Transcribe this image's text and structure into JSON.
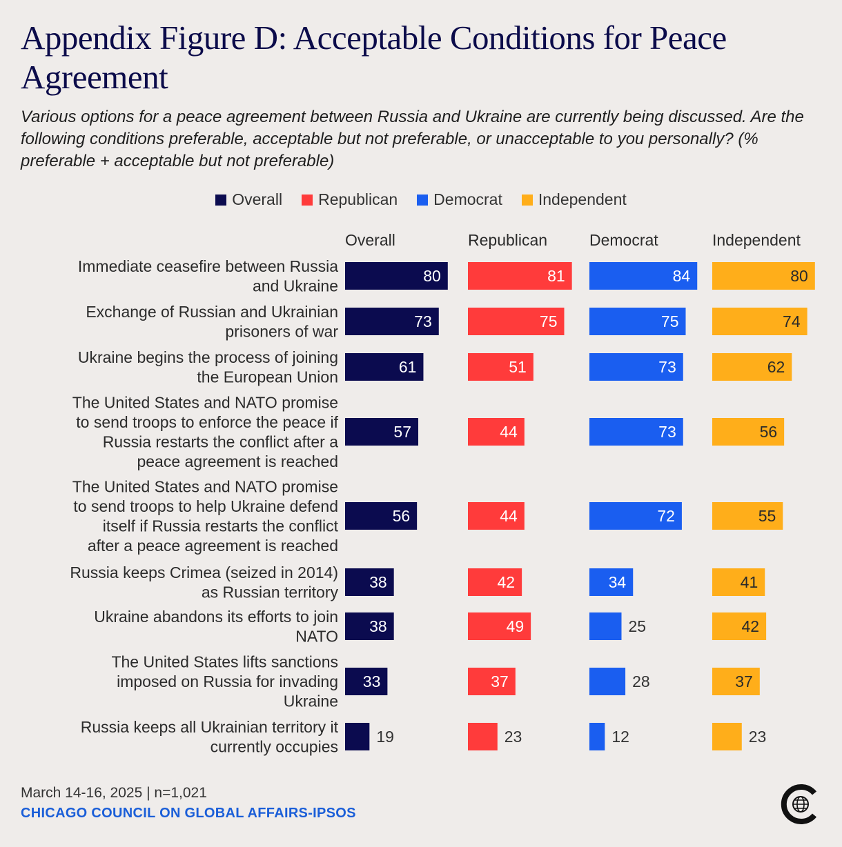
{
  "title": "Appendix Figure D: Acceptable Conditions for Peace Agreement",
  "subtitle": "Various options for a peace agreement between Russia and Ukraine are currently being discussed. Are the following conditions preferable, acceptable but not preferable, or unacceptable to you personally? (% preferable + acceptable but not preferable)",
  "footer": {
    "date": "March 14-16, 2025 | n=1,021",
    "source": "CHICAGO COUNCIL ON GLOBAL AFFAIRS-IPSOS"
  },
  "logo_icon": "chicago-council-globe-logo-icon",
  "colors": {
    "overall": "#0b0b4f",
    "republican": "#ff3b3b",
    "democrat": "#1a5ef0",
    "independent": "#ffae1a",
    "background": "#efecea"
  },
  "chart_data": {
    "type": "bar",
    "orientation": "horizontal",
    "legend_position": "top-center",
    "grid": false,
    "xlim": [
      0,
      100
    ],
    "categories": [
      [
        "Immediate ceasefire between Russia",
        "and Ukraine"
      ],
      [
        "Exchange of Russian and Ukrainian",
        "prisoners of war"
      ],
      [
        "Ukraine begins the process of joining",
        "the European Union"
      ],
      [
        "The United States and NATO promise",
        "to send troops to enforce the peace if",
        "Russia restarts the conflict after a",
        "peace agreement is reached"
      ],
      [
        "The United States and NATO promise",
        "to send troops to help Ukraine defend",
        "itself if Russia restarts the conflict",
        "after a peace agreement is reached"
      ],
      [
        "Russia keeps Crimea (seized in 2014)",
        "as Russian territory"
      ],
      [
        "Ukraine abandons its efforts to join",
        "NATO"
      ],
      [
        "The United States lifts sanctions",
        "imposed on Russia for invading",
        "Ukraine"
      ],
      [
        "Russia keeps all Ukrainian territory it",
        "currently occupies"
      ]
    ],
    "series": [
      {
        "name": "Overall",
        "key": "overall",
        "values": [
          80,
          73,
          61,
          57,
          56,
          38,
          38,
          33,
          19
        ]
      },
      {
        "name": "Republican",
        "key": "republican",
        "values": [
          81,
          75,
          51,
          44,
          44,
          42,
          49,
          37,
          23
        ]
      },
      {
        "name": "Democrat",
        "key": "democrat",
        "values": [
          84,
          75,
          73,
          73,
          72,
          34,
          25,
          28,
          12
        ]
      },
      {
        "name": "Independent",
        "key": "independent",
        "values": [
          80,
          74,
          62,
          56,
          55,
          41,
          42,
          37,
          23
        ]
      }
    ]
  }
}
